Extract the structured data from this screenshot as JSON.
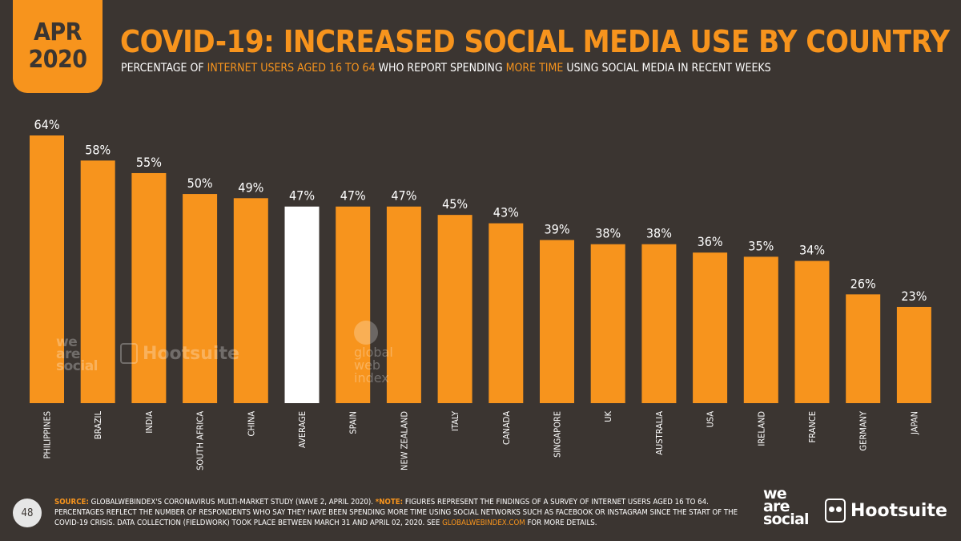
{
  "badge": {
    "month": "APR",
    "year": "2020"
  },
  "header": {
    "title": "COVID-19: INCREASED SOCIAL MEDIA USE BY COUNTRY",
    "subtitle_parts": [
      "PERCENTAGE OF ",
      "INTERNET USERS AGED 16 TO 64",
      " WHO REPORT SPENDING ",
      "MORE TIME",
      " USING SOCIAL MEDIA IN RECENT WEEKS"
    ]
  },
  "chart_data": {
    "type": "bar",
    "title": "COVID-19: INCREASED SOCIAL MEDIA USE BY COUNTRY",
    "categories": [
      "PHILIPPINES",
      "BRAZIL",
      "INDIA",
      "SOUTH AFRICA",
      "CHINA",
      "AVERAGE",
      "SPAIN",
      "NEW ZEALAND",
      "ITALY",
      "CANADA",
      "SINGAPORE",
      "UK",
      "AUSTRALIA",
      "USA",
      "IRELAND",
      "FRANCE",
      "GERMANY",
      "JAPAN"
    ],
    "values": [
      64,
      58,
      55,
      50,
      49,
      47,
      47,
      47,
      45,
      43,
      39,
      38,
      38,
      36,
      35,
      34,
      26,
      23
    ],
    "value_labels": [
      "64%",
      "58%",
      "55%",
      "50%",
      "49%",
      "47%",
      "47%",
      "47%",
      "45%",
      "43%",
      "39%",
      "38%",
      "38%",
      "36%",
      "35%",
      "34%",
      "26%",
      "23%"
    ],
    "unit": "%",
    "ylim": [
      0,
      64
    ],
    "highlight_category": "AVERAGE",
    "colors": {
      "bar": "#f7941d",
      "highlight": "#ffffff"
    },
    "grid": false,
    "legend": "none"
  },
  "watermarks": {
    "we_are_social": [
      "we",
      "are",
      "social"
    ],
    "hootsuite": "Hootsuite",
    "gwi": [
      "global",
      "web",
      "index"
    ]
  },
  "footer": {
    "page_number": "48",
    "source_label": "SOURCE:",
    "source_text": " GLOBALWEBINDEX'S CORONAVIRUS MULTI-MARKET STUDY (WAVE 2, APRIL 2020). ",
    "note_label": "*NOTE:",
    "note_text": " FIGURES REPRESENT THE FINDINGS OF A SURVEY OF INTERNET USERS AGED 16 TO 64. PERCENTAGES REFLECT THE NUMBER OF RESPONDENTS WHO SAY THEY HAVE BEEN SPENDING MORE TIME USING SOCIAL NETWORKS SUCH AS FACEBOOK OR INSTAGRAM SINCE THE START OF THE COVID-19 CRISIS. DATA COLLECTION (FIELDWORK) TOOK PLACE BETWEEN MARCH 31 AND APRIL 02, 2020. SEE ",
    "link_text": "GLOBALWEBINDEX.COM",
    "tail_text": " FOR MORE DETAILS."
  },
  "logos": {
    "we_are_social": [
      "we",
      "are",
      "social"
    ],
    "hootsuite": "Hootsuite"
  },
  "colors": {
    "background": "#3b3531",
    "accent": "#f7941d",
    "text": "#ffffff"
  }
}
